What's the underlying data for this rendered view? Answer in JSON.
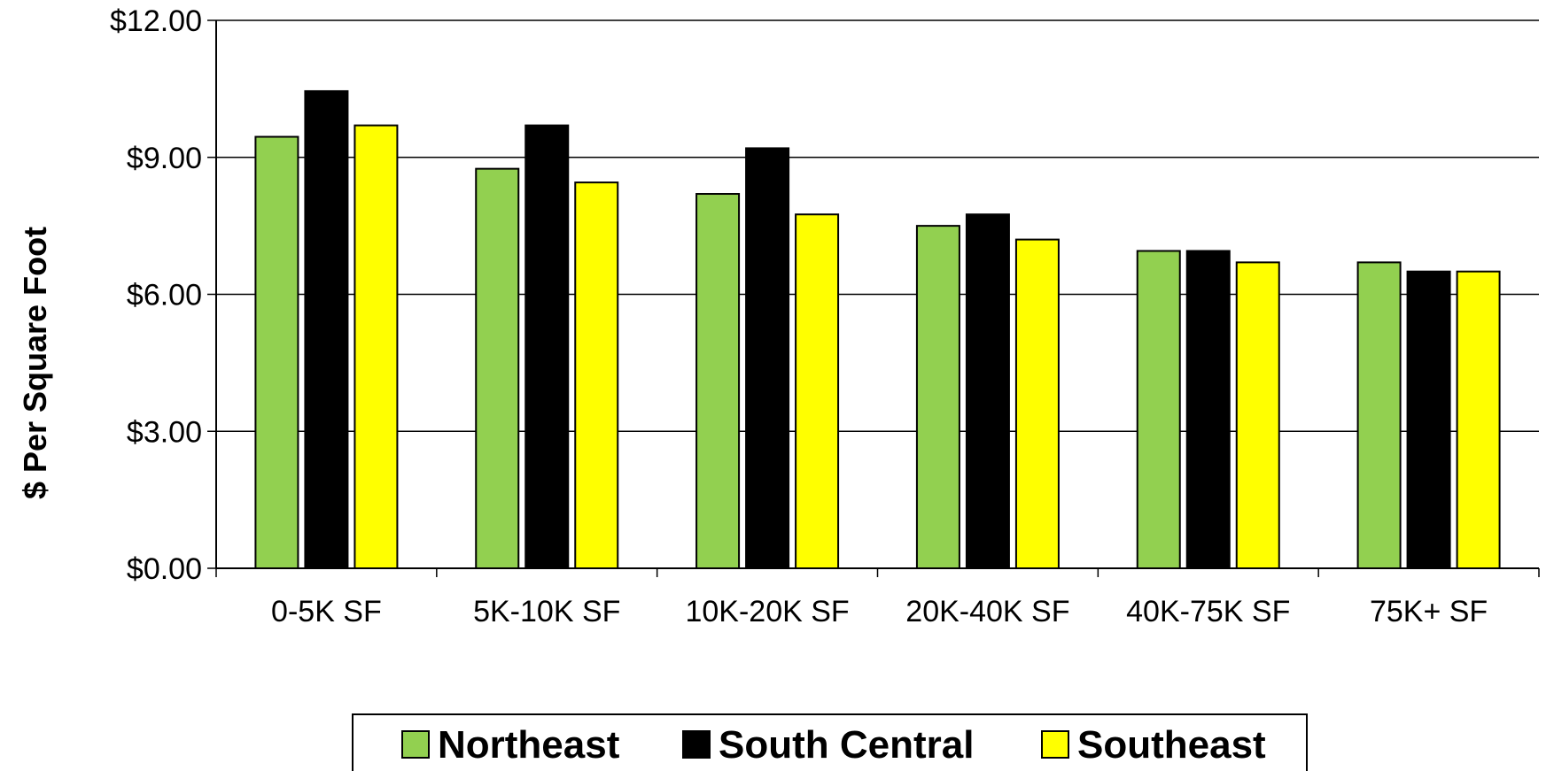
{
  "chart_data": {
    "type": "bar",
    "title": "",
    "xlabel": "",
    "ylabel": "$ Per Square Foot",
    "ylim": [
      0,
      12
    ],
    "yticks": [
      "$0.00",
      "$3.00",
      "$6.00",
      "$9.00",
      "$12.00"
    ],
    "ytick_values": [
      0,
      3,
      6,
      9,
      12
    ],
    "grid": true,
    "legend_position": "bottom",
    "categories": [
      "0-5K SF",
      "5K-10K SF",
      "10K-20K SF",
      "20K-40K SF",
      "40K-75K SF",
      "75K+ SF"
    ],
    "series": [
      {
        "name": "Northeast",
        "color": "#92D050",
        "values": [
          9.45,
          8.75,
          8.2,
          7.5,
          6.95,
          6.7
        ]
      },
      {
        "name": "South Central",
        "color": "#000000",
        "values": [
          10.45,
          9.7,
          9.2,
          7.75,
          6.95,
          6.5
        ]
      },
      {
        "name": "Southeast",
        "color": "#FFFF00",
        "values": [
          9.7,
          8.45,
          7.75,
          7.2,
          6.7,
          6.5
        ]
      }
    ]
  }
}
